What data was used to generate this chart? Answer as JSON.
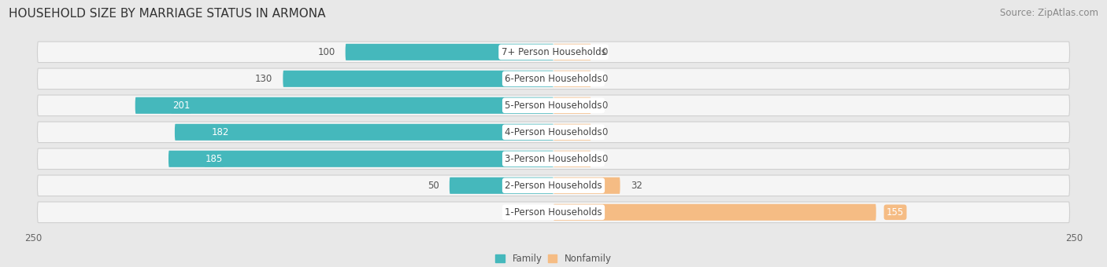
{
  "title": "HOUSEHOLD SIZE BY MARRIAGE STATUS IN ARMONA",
  "source": "Source: ZipAtlas.com",
  "categories": [
    "7+ Person Households",
    "6-Person Households",
    "5-Person Households",
    "4-Person Households",
    "3-Person Households",
    "2-Person Households",
    "1-Person Households"
  ],
  "family_values": [
    100,
    130,
    201,
    182,
    185,
    50,
    0
  ],
  "nonfamily_values": [
    0,
    0,
    0,
    0,
    0,
    32,
    155
  ],
  "family_color": "#45b8bc",
  "nonfamily_color": "#f5bc84",
  "xlim": 250,
  "bg_color": "#e8e8e8",
  "row_bg_color": "#f5f5f5",
  "row_border_color": "#d0d0d0",
  "title_fontsize": 11,
  "source_fontsize": 8.5,
  "label_fontsize": 8.5,
  "value_fontsize": 8.5,
  "tick_fontsize": 8.5,
  "nonfamily_stub": 18
}
